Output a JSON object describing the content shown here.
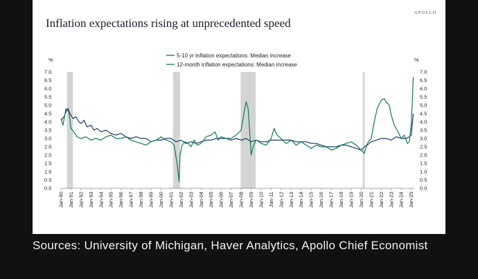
{
  "header": {
    "title": "Inflation expectations rising at unprecedented speed",
    "brand": "APOLLO"
  },
  "caption": "Sources: University of Michigan, Haver Analytics, Apollo Chief Economist",
  "colors": {
    "series_long": "#1f3a68",
    "series_short": "#0b7a5a",
    "recession": "#d4d4d4"
  },
  "chart_data": {
    "type": "line",
    "title": "Inflation expectations rising at unprecedented speed",
    "ylabel_left": "%",
    "ylabel_right": "%",
    "ylim": [
      0,
      7
    ],
    "yticks": [
      "0.0",
      "0.5",
      "1.0",
      "1.5",
      "2.0",
      "2.5",
      "3.0",
      "3.5",
      "4.0",
      "4.5",
      "5.0",
      "5.5",
      "6.0",
      "6.5",
      "7.0"
    ],
    "xlim": [
      1990.0,
      2025.3
    ],
    "xticks": [
      "Jan-90",
      "Jan-91",
      "Jan-92",
      "Jan-93",
      "Jan-94",
      "Jan-95",
      "Jan-96",
      "Jan-97",
      "Jan-98",
      "Jan-99",
      "Jan-00",
      "Jan-01",
      "Jan-02",
      "Jan-03",
      "Jan-04",
      "Jan-05",
      "Jan-06",
      "Jan-07",
      "Jan-08",
      "Jan-09",
      "Jan-10",
      "Jan-11",
      "Jan-12",
      "Jan-13",
      "Jan-14",
      "Jan-15",
      "Jan-16",
      "Jan-17",
      "Jan-18",
      "Jan-19",
      "Jan-20",
      "Jan-21",
      "Jan-22",
      "Jan-23",
      "Jan-24",
      "Jan-25"
    ],
    "recessions": [
      [
        1990.6,
        1991.2
      ],
      [
        2001.2,
        2001.9
      ],
      [
        2007.95,
        2009.45
      ],
      [
        2020.15,
        2020.35
      ]
    ],
    "legend_position": "top-center",
    "series": [
      {
        "name": "5-10 yr inflation expectations: Median increase",
        "x": [
          1990.0,
          1990.3,
          1990.5,
          1990.7,
          1990.9,
          1991.2,
          1991.5,
          1991.8,
          1992.0,
          1992.3,
          1992.6,
          1993.0,
          1993.3,
          1993.6,
          1994.0,
          1994.5,
          1995.0,
          1995.5,
          1996.0,
          1996.5,
          1997.0,
          1997.5,
          1998.0,
          1998.5,
          1999.0,
          1999.5,
          2000.0,
          2000.5,
          2001.0,
          2001.5,
          2002.0,
          2002.5,
          2003.0,
          2003.5,
          2004.0,
          2004.5,
          2005.0,
          2005.5,
          2006.0,
          2006.5,
          2007.0,
          2007.5,
          2008.0,
          2008.5,
          2009.0,
          2009.5,
          2010.0,
          2010.5,
          2011.0,
          2011.5,
          2012.0,
          2012.5,
          2013.0,
          2013.5,
          2014.0,
          2014.5,
          2015.0,
          2015.5,
          2016.0,
          2016.5,
          2017.0,
          2017.5,
          2018.0,
          2018.5,
          2019.0,
          2019.5,
          2020.0,
          2020.3,
          2020.6,
          2021.0,
          2021.5,
          2022.0,
          2022.5,
          2023.0,
          2023.5,
          2024.0,
          2024.5,
          2024.8,
          2025.0,
          2025.2
        ],
        "values": [
          4.1,
          4.3,
          4.6,
          4.8,
          4.5,
          4.2,
          4.3,
          4.0,
          3.9,
          4.1,
          3.7,
          3.8,
          3.5,
          3.6,
          3.4,
          3.5,
          3.3,
          3.2,
          3.3,
          3.1,
          3.0,
          3.1,
          3.0,
          3.0,
          2.8,
          2.9,
          2.9,
          3.0,
          3.0,
          2.8,
          2.9,
          2.7,
          2.8,
          2.7,
          2.8,
          2.9,
          2.9,
          3.0,
          3.0,
          3.0,
          2.9,
          3.0,
          2.9,
          3.0,
          2.8,
          2.9,
          2.8,
          2.8,
          2.9,
          2.9,
          2.9,
          2.9,
          2.9,
          2.8,
          2.8,
          2.8,
          2.7,
          2.7,
          2.6,
          2.5,
          2.5,
          2.5,
          2.6,
          2.6,
          2.5,
          2.4,
          2.3,
          2.5,
          2.6,
          2.8,
          2.9,
          3.0,
          3.0,
          2.9,
          3.1,
          3.0,
          3.0,
          3.1,
          3.2,
          4.5
        ]
      },
      {
        "name": "12-month inflation expectations: Median increase",
        "x": [
          1990.0,
          1990.2,
          1990.5,
          1990.8,
          1991.0,
          1991.3,
          1991.6,
          1992.0,
          1992.5,
          1993.0,
          1993.5,
          1994.0,
          1994.5,
          1995.0,
          1995.5,
          1996.0,
          1996.5,
          1997.0,
          1997.5,
          1998.0,
          1998.5,
          1999.0,
          1999.5,
          2000.0,
          2000.5,
          2001.0,
          2001.3,
          2001.6,
          2001.8,
          2001.9,
          2002.1,
          2002.4,
          2002.7,
          2003.0,
          2003.3,
          2003.6,
          2004.0,
          2004.5,
          2005.0,
          2005.4,
          2005.7,
          2006.0,
          2006.5,
          2007.0,
          2007.5,
          2008.0,
          2008.3,
          2008.5,
          2008.7,
          2008.9,
          2009.0,
          2009.2,
          2009.5,
          2009.8,
          2010.0,
          2010.5,
          2011.0,
          2011.3,
          2011.6,
          2012.0,
          2012.5,
          2013.0,
          2013.5,
          2014.0,
          2014.5,
          2015.0,
          2015.5,
          2016.0,
          2016.5,
          2017.0,
          2017.5,
          2018.0,
          2018.5,
          2019.0,
          2019.5,
          2020.0,
          2020.3,
          2020.6,
          2021.0,
          2021.3,
          2021.6,
          2022.0,
          2022.3,
          2022.5,
          2022.8,
          2023.0,
          2023.3,
          2023.6,
          2024.0,
          2024.3,
          2024.6,
          2024.8,
          2025.0,
          2025.1,
          2025.2
        ],
        "values": [
          4.2,
          3.8,
          4.8,
          4.6,
          3.6,
          3.4,
          3.1,
          3.0,
          3.1,
          2.9,
          3.0,
          2.9,
          3.1,
          3.2,
          3.0,
          3.0,
          3.1,
          2.9,
          2.8,
          2.7,
          2.6,
          2.8,
          2.9,
          3.1,
          2.9,
          2.8,
          2.6,
          1.5,
          0.4,
          2.0,
          2.6,
          2.8,
          2.7,
          2.5,
          2.9,
          2.6,
          2.7,
          3.1,
          3.2,
          3.4,
          2.9,
          3.1,
          3.0,
          3.0,
          3.2,
          3.5,
          4.6,
          5.2,
          4.8,
          3.0,
          2.0,
          2.5,
          2.9,
          2.8,
          2.7,
          2.6,
          3.0,
          3.6,
          3.2,
          3.0,
          2.7,
          2.9,
          2.6,
          2.8,
          2.6,
          2.4,
          2.6,
          2.5,
          2.5,
          2.3,
          2.4,
          2.6,
          2.7,
          2.8,
          2.6,
          2.3,
          2.1,
          2.7,
          3.0,
          4.0,
          4.8,
          5.3,
          5.4,
          5.2,
          5.0,
          4.4,
          3.8,
          3.5,
          3.0,
          3.2,
          2.7,
          2.8,
          3.9,
          5.2,
          6.7
        ]
      }
    ]
  }
}
